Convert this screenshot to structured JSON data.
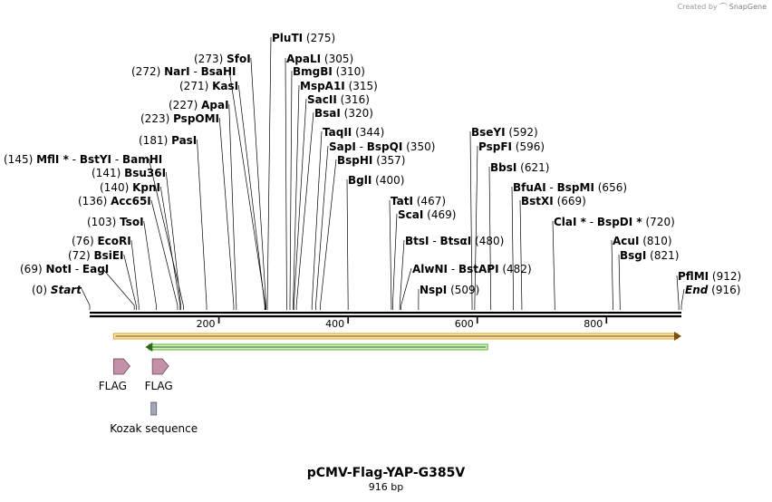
{
  "credit": {
    "prefix": "Created by",
    "brand": "SnapGene"
  },
  "plasmid": {
    "name": "pCMV-Flag-YAP-G385V",
    "length_label": "916 bp",
    "length_bp": 916
  },
  "axis": {
    "ticks": [
      200,
      400,
      600,
      800
    ]
  },
  "sites": [
    {
      "pos": "(0)",
      "bp": 0,
      "parts": [
        {
          "t": "Start",
          "italic": true
        }
      ]
    },
    {
      "pos": "(69)",
      "bp": 69,
      "parts": [
        {
          "t": "NotI"
        },
        {
          "t": "EagI"
        }
      ]
    },
    {
      "pos": "(72)",
      "bp": 72,
      "parts": [
        {
          "t": "BsiEI"
        }
      ]
    },
    {
      "pos": "(76)",
      "bp": 76,
      "parts": [
        {
          "t": "EcoRI"
        }
      ]
    },
    {
      "pos": "(103)",
      "bp": 103,
      "parts": [
        {
          "t": "TsoI"
        }
      ]
    },
    {
      "pos": "(136)",
      "bp": 136,
      "parts": [
        {
          "t": "Acc65I"
        }
      ]
    },
    {
      "pos": "(140)",
      "bp": 140,
      "parts": [
        {
          "t": "KpnI"
        }
      ]
    },
    {
      "pos": "(141)",
      "bp": 141,
      "parts": [
        {
          "t": "Bsu36I"
        }
      ]
    },
    {
      "pos": "(145)",
      "bp": 145,
      "parts": [
        {
          "t": "MflI",
          "star": true
        },
        {
          "t": "BstYI"
        },
        {
          "t": "BamHI"
        }
      ]
    },
    {
      "pos": "(181)",
      "bp": 181,
      "parts": [
        {
          "t": "PasI"
        }
      ]
    },
    {
      "pos": "(223)",
      "bp": 223,
      "parts": [
        {
          "t": "PspOMI"
        }
      ]
    },
    {
      "pos": "(227)",
      "bp": 227,
      "parts": [
        {
          "t": "ApaI"
        }
      ]
    },
    {
      "pos": "(271)",
      "bp": 271,
      "parts": [
        {
          "t": "KasI"
        }
      ]
    },
    {
      "pos": "(272)",
      "bp": 272,
      "parts": [
        {
          "t": "NarI"
        },
        {
          "t": "BsaHI"
        }
      ]
    },
    {
      "pos": "(273)",
      "bp": 273,
      "parts": [
        {
          "t": "SfoI"
        }
      ]
    },
    {
      "pos": "(275)",
      "bp": 275,
      "parts": [
        {
          "t": "PluTI"
        }
      ]
    },
    {
      "pos": "(305)",
      "bp": 305,
      "parts": [
        {
          "t": "ApaLI"
        }
      ]
    },
    {
      "pos": "(310)",
      "bp": 310,
      "parts": [
        {
          "t": "BmgBI"
        }
      ]
    },
    {
      "pos": "(315)",
      "bp": 315,
      "parts": [
        {
          "t": "MspA1I"
        }
      ]
    },
    {
      "pos": "(316)",
      "bp": 316,
      "parts": [
        {
          "t": "SacII"
        }
      ]
    },
    {
      "pos": "(320)",
      "bp": 320,
      "parts": [
        {
          "t": "BsaI"
        }
      ]
    },
    {
      "pos": "(344)",
      "bp": 344,
      "parts": [
        {
          "t": "TaqII"
        }
      ]
    },
    {
      "pos": "(350)",
      "bp": 350,
      "parts": [
        {
          "t": "SapI"
        },
        {
          "t": "BspQI"
        }
      ]
    },
    {
      "pos": "(357)",
      "bp": 357,
      "parts": [
        {
          "t": "BspHI"
        }
      ]
    },
    {
      "pos": "(400)",
      "bp": 400,
      "parts": [
        {
          "t": "BglI"
        }
      ]
    },
    {
      "pos": "(467)",
      "bp": 467,
      "parts": [
        {
          "t": "TatI"
        }
      ]
    },
    {
      "pos": "(469)",
      "bp": 469,
      "parts": [
        {
          "t": "ScaI"
        }
      ]
    },
    {
      "pos": "(480)",
      "bp": 480,
      "parts": [
        {
          "t": "BtsI"
        },
        {
          "t": "BtsαI"
        }
      ]
    },
    {
      "pos": "(482)",
      "bp": 482,
      "parts": [
        {
          "t": "AlwNI"
        },
        {
          "t": "BstAPI"
        }
      ]
    },
    {
      "pos": "(509)",
      "bp": 509,
      "parts": [
        {
          "t": "NspI"
        }
      ]
    },
    {
      "pos": "(592)",
      "bp": 592,
      "parts": [
        {
          "t": "BseYI"
        }
      ]
    },
    {
      "pos": "(596)",
      "bp": 596,
      "parts": [
        {
          "t": "PspFI"
        }
      ]
    },
    {
      "pos": "(621)",
      "bp": 621,
      "parts": [
        {
          "t": "BbsI"
        }
      ]
    },
    {
      "pos": "(656)",
      "bp": 656,
      "parts": [
        {
          "t": "BfuAI"
        },
        {
          "t": "BspMI"
        }
      ]
    },
    {
      "pos": "(669)",
      "bp": 669,
      "parts": [
        {
          "t": "BstXI"
        }
      ]
    },
    {
      "pos": "(720)",
      "bp": 720,
      "parts": [
        {
          "t": "ClaI",
          "star": true
        },
        {
          "t": "BspDI",
          "star": true
        }
      ]
    },
    {
      "pos": "(810)",
      "bp": 810,
      "parts": [
        {
          "t": "AcuI"
        }
      ]
    },
    {
      "pos": "(821)",
      "bp": 821,
      "parts": [
        {
          "t": "BsgI"
        }
      ]
    },
    {
      "pos": "(912)",
      "bp": 912,
      "parts": [
        {
          "t": "PflMI"
        }
      ]
    },
    {
      "pos": "(916)",
      "bp": 916,
      "parts": [
        {
          "t": "End",
          "italic": true
        }
      ]
    }
  ],
  "features": [
    {
      "label": "FLAG",
      "type": "flag-arrow",
      "color": "#c48fa8"
    },
    {
      "label": "FLAG",
      "type": "flag-arrow",
      "color": "#c48fa8"
    },
    {
      "label": "Kozak sequence",
      "type": "kozak-box",
      "color": "#a2a8b8"
    }
  ],
  "orfs": [
    {
      "name": "orange-orf",
      "color": "#e8a020",
      "direction": "forward"
    },
    {
      "name": "green-orf",
      "color": "#5ab030",
      "direction": "reverse"
    }
  ]
}
